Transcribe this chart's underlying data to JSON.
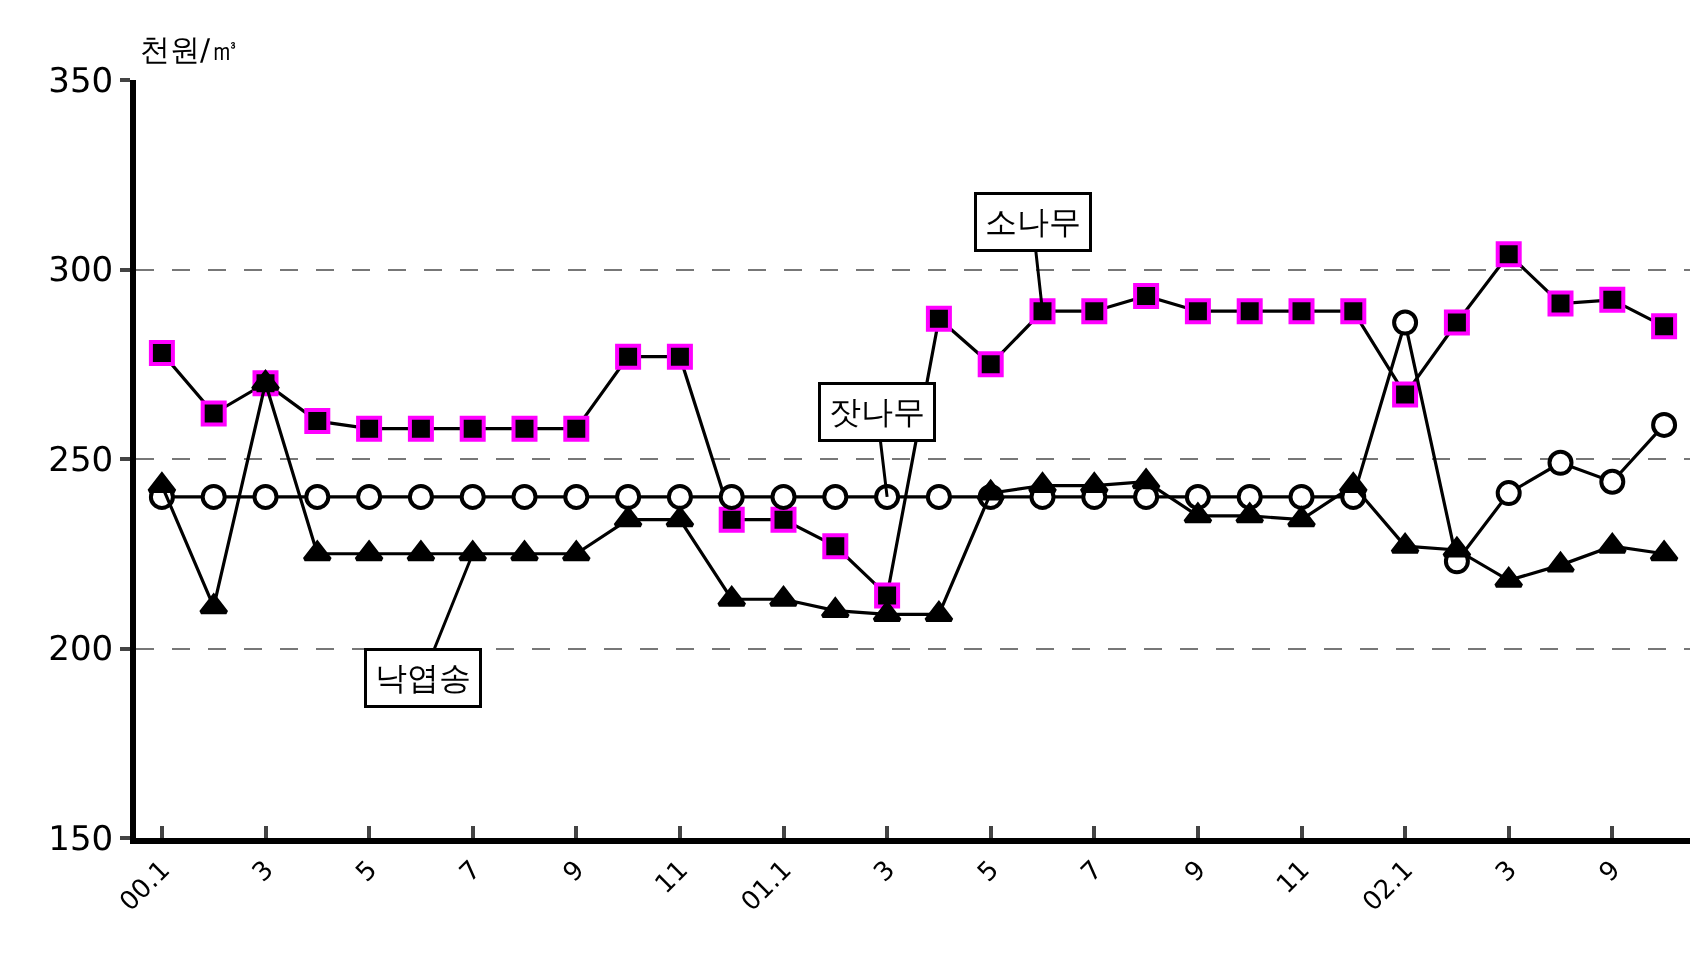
{
  "chart_data": {
    "type": "line",
    "ylabel": "천원/㎥",
    "categories": [
      "00.1",
      null,
      "3",
      null,
      "5",
      null,
      "7",
      null,
      "9",
      null,
      "11",
      null,
      "01.1",
      null,
      "3",
      null,
      "5",
      null,
      "7",
      null,
      "9",
      null,
      "11",
      null,
      "02.1",
      null,
      "3",
      null,
      "9",
      null
    ],
    "series": [
      {
        "name": "소나무",
        "color": "#ff00ff",
        "marker": "square",
        "values": [
          278,
          262,
          270,
          260,
          258,
          258,
          258,
          258,
          258,
          277,
          277,
          234,
          234,
          227,
          214,
          287,
          275,
          289,
          289,
          293,
          289,
          289,
          289,
          289,
          267,
          286,
          304,
          291,
          292,
          285
        ]
      },
      {
        "name": "잣나무",
        "color": "#000000",
        "marker": "circle",
        "values": [
          240,
          240,
          240,
          240,
          240,
          240,
          240,
          240,
          240,
          240,
          240,
          240,
          240,
          240,
          240,
          240,
          240,
          240,
          240,
          240,
          240,
          240,
          240,
          240,
          286,
          223,
          241,
          249,
          244,
          259
        ]
      },
      {
        "name": "낙엽송",
        "color": "#000000",
        "marker": "triangle",
        "values": [
          243,
          211,
          270,
          225,
          225,
          225,
          225,
          225,
          225,
          234,
          234,
          213,
          213,
          210,
          209,
          209,
          241,
          243,
          243,
          244,
          235,
          235,
          234,
          243,
          227,
          226,
          218,
          222,
          227,
          225
        ]
      }
    ],
    "ylim": [
      150,
      350
    ],
    "yticks": [
      150,
      200,
      250,
      300,
      350
    ],
    "grid": "y",
    "legend": false,
    "line_style": "solid"
  }
}
